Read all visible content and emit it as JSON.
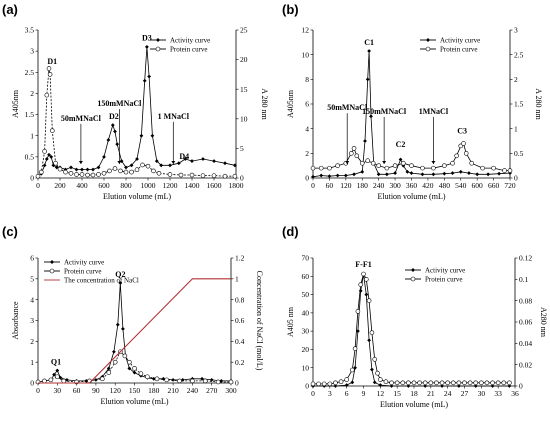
{
  "chart_data": [
    {
      "panel": "(a)",
      "type": "line",
      "xlabel": "Elution volume (mL)",
      "ylabel": "A405nm",
      "y2label": "A 280 nm",
      "xlim": [
        0,
        1800
      ],
      "ylim": [
        0,
        3.5
      ],
      "y2lim": [
        0,
        25
      ],
      "xticks": [
        0,
        200,
        400,
        600,
        800,
        1000,
        1200,
        1400,
        1600,
        1800
      ],
      "yticks": [
        0,
        0.5,
        1,
        1.5,
        2,
        2.5,
        3,
        3.5
      ],
      "y2ticks": [
        0,
        5,
        10,
        15,
        20,
        25
      ],
      "legend": [
        "Activity curve",
        "Protein curve"
      ],
      "annotations": [
        {
          "text": "D1",
          "x": 130,
          "y": 2.7,
          "arrow": false
        },
        {
          "text": "50mMNaCl",
          "x": 390,
          "y": 1.35,
          "arrow": true
        },
        {
          "text": "150mMNaCl",
          "x": 740,
          "y": 1.7,
          "arrow": true
        },
        {
          "text": "D2",
          "x": 690,
          "y": 1.4,
          "arrow": false
        },
        {
          "text": "D3",
          "x": 990,
          "y": 3.25,
          "arrow": false
        },
        {
          "text": "1 MNaCl",
          "x": 1230,
          "y": 1.4,
          "arrow": true
        },
        {
          "text": "D4",
          "x": 1330,
          "y": 0.45,
          "arrow": false
        }
      ],
      "series": [
        {
          "name": "Activity curve",
          "axis": "left",
          "marker": "diamond",
          "x": [
            0,
            30,
            60,
            80,
            100,
            120,
            140,
            170,
            200,
            250,
            300,
            350,
            400,
            450,
            500,
            550,
            600,
            640,
            680,
            700,
            720,
            760,
            800,
            850,
            900,
            940,
            970,
            990,
            1010,
            1040,
            1080,
            1120,
            1200,
            1280,
            1340,
            1400,
            1500,
            1600,
            1700,
            1790
          ],
          "y": [
            0.05,
            0.1,
            0.3,
            0.45,
            0.55,
            0.5,
            0.3,
            0.25,
            0.25,
            0.2,
            0.25,
            0.2,
            0.2,
            0.2,
            0.2,
            0.25,
            0.5,
            0.9,
            1.25,
            1.1,
            0.8,
            0.4,
            0.25,
            0.3,
            0.45,
            1.0,
            2.3,
            3.1,
            2.4,
            1.0,
            0.4,
            0.3,
            0.3,
            0.35,
            0.45,
            0.4,
            0.45,
            0.4,
            0.35,
            0.3
          ]
        },
        {
          "name": "Protein curve",
          "axis": "right",
          "marker": "circle",
          "x": [
            0,
            30,
            60,
            80,
            100,
            110,
            130,
            160,
            200,
            250,
            300,
            350,
            400,
            450,
            500,
            550,
            600,
            650,
            700,
            750,
            800,
            850,
            900,
            950,
            1000,
            1050,
            1100,
            1200,
            1300,
            1400,
            1500,
            1600,
            1700,
            1790
          ],
          "y": [
            0.3,
            1.0,
            4.5,
            14.0,
            18.5,
            17.5,
            8.0,
            2.5,
            1.5,
            1.0,
            0.8,
            0.6,
            0.6,
            0.5,
            0.5,
            0.6,
            0.8,
            1.2,
            1.6,
            1.2,
            1.0,
            1.0,
            1.4,
            2.2,
            2.0,
            1.2,
            0.8,
            0.6,
            0.5,
            0.5,
            0.4,
            0.4,
            0.3,
            0.3
          ]
        }
      ]
    },
    {
      "panel": "(b)",
      "type": "line",
      "xlabel": "Elution volume (mL)",
      "ylabel": "A405nm",
      "y2label": "A 280 nm",
      "xlim": [
        0,
        720
      ],
      "ylim": [
        0,
        12
      ],
      "y2lim": [
        0,
        3
      ],
      "xticks": [
        0,
        60,
        120,
        180,
        240,
        300,
        360,
        420,
        480,
        540,
        600,
        660,
        720
      ],
      "yticks": [
        0,
        2,
        4,
        6,
        8,
        10,
        12
      ],
      "y2ticks": [
        0,
        0.5,
        1,
        1.5,
        2,
        2.5,
        3
      ],
      "legend": [
        "Activity curve",
        "Protein curve"
      ],
      "annotations": [
        {
          "text": "C1",
          "x": 205,
          "y": 10.8,
          "arrow": false
        },
        {
          "text": "50mMNaCl",
          "x": 125,
          "y": 5.5,
          "arrow": true
        },
        {
          "text": "150mMNaCl",
          "x": 260,
          "y": 5.2,
          "arrow": true
        },
        {
          "text": "C2",
          "x": 320,
          "y": 2.5,
          "arrow": false
        },
        {
          "text": "1MNaCl",
          "x": 440,
          "y": 5.2,
          "arrow": true
        },
        {
          "text": "C3",
          "x": 545,
          "y": 3.6,
          "arrow": false
        }
      ],
      "series": [
        {
          "name": "Activity curve",
          "axis": "left",
          "marker": "diamond",
          "x": [
            0,
            30,
            60,
            90,
            120,
            150,
            180,
            190,
            200,
            205,
            212,
            222,
            240,
            270,
            300,
            320,
            330,
            345,
            360,
            400,
            440,
            480,
            510,
            540,
            570,
            600,
            640,
            680,
            720
          ],
          "y": [
            0.1,
            0.2,
            0.15,
            0.2,
            0.2,
            0.3,
            0.5,
            3.0,
            8.0,
            10.3,
            5.0,
            1.2,
            0.3,
            0.3,
            0.4,
            1.5,
            1.0,
            0.5,
            0.4,
            0.3,
            0.3,
            0.35,
            0.4,
            0.5,
            0.4,
            0.3,
            0.3,
            0.35,
            0.4
          ]
        },
        {
          "name": "Protein curve",
          "axis": "right",
          "marker": "circle",
          "x": [
            0,
            30,
            60,
            90,
            120,
            140,
            150,
            160,
            180,
            200,
            220,
            240,
            270,
            300,
            330,
            360,
            400,
            440,
            480,
            510,
            525,
            540,
            550,
            560,
            580,
            620,
            660,
            700,
            720
          ],
          "y": [
            0.2,
            0.2,
            0.2,
            0.25,
            0.3,
            0.5,
            0.6,
            0.45,
            0.3,
            0.35,
            0.3,
            0.25,
            0.2,
            0.25,
            0.3,
            0.25,
            0.2,
            0.2,
            0.25,
            0.3,
            0.45,
            0.65,
            0.7,
            0.5,
            0.3,
            0.2,
            0.2,
            0.15,
            0.15
          ]
        }
      ]
    },
    {
      "panel": "(c)",
      "type": "line",
      "xlabel": "Elution volume (mL)",
      "ylabel": "Absorbance",
      "y2label": "Concentration of NaCl (mol/L)",
      "xlim": [
        0,
        300
      ],
      "ylim": [
        0,
        6
      ],
      "y2lim": [
        0,
        1.2
      ],
      "xticks": [
        0,
        30,
        60,
        90,
        120,
        150,
        180,
        210,
        240,
        270,
        300
      ],
      "yticks": [
        0,
        1,
        2,
        3,
        4,
        5,
        6
      ],
      "y2ticks": [
        0,
        0.2,
        0.4,
        0.6,
        0.8,
        1,
        1.2
      ],
      "legend": [
        "Activity curve",
        "Protein curve",
        "The concentration of NaCl"
      ],
      "annotations": [
        {
          "text": "Q1",
          "x": 28,
          "y": 0.9
        },
        {
          "text": "Q2",
          "x": 128,
          "y": 5.1
        }
      ],
      "series": [
        {
          "name": "Activity curve",
          "axis": "left",
          "marker": "diamond",
          "x": [
            0,
            10,
            20,
            25,
            30,
            35,
            45,
            60,
            75,
            90,
            100,
            110,
            118,
            124,
            128,
            132,
            136,
            142,
            150,
            160,
            170,
            180,
            195,
            210,
            225,
            240,
            255,
            270,
            285,
            300
          ],
          "y": [
            0.05,
            0.1,
            0.15,
            0.4,
            0.6,
            0.25,
            0.15,
            0.1,
            0.1,
            0.15,
            0.3,
            0.7,
            1.5,
            2.8,
            4.8,
            2.6,
            1.3,
            0.7,
            0.5,
            0.35,
            0.25,
            0.2,
            0.2,
            0.15,
            0.15,
            0.2,
            0.2,
            0.15,
            0.1,
            0.1
          ]
        },
        {
          "name": "Protein curve",
          "axis": "left",
          "marker": "circle",
          "x": [
            0,
            10,
            20,
            30,
            40,
            60,
            80,
            100,
            110,
            120,
            128,
            135,
            142,
            150,
            160,
            170,
            185,
            200,
            220,
            240,
            260,
            280,
            300
          ],
          "y": [
            0.05,
            0.1,
            0.15,
            0.3,
            0.1,
            0.05,
            0.1,
            0.2,
            0.5,
            1.0,
            1.5,
            1.3,
            1.0,
            0.7,
            0.45,
            0.3,
            0.2,
            0.15,
            0.1,
            0.1,
            0.1,
            0.05,
            0.05
          ]
        },
        {
          "name": "The concentration of NaCl",
          "axis": "right",
          "marker": "none",
          "color": "#b03030",
          "x": [
            0,
            80,
            240,
            300
          ],
          "y": [
            0,
            0,
            1,
            1
          ]
        }
      ]
    },
    {
      "panel": "(d)",
      "type": "line",
      "xlabel": "Elution volume (mL)",
      "ylabel": "A405 nm",
      "y2label": "A280 nm",
      "xlim": [
        0,
        36
      ],
      "ylim": [
        0,
        70
      ],
      "y2lim": [
        0,
        0.12
      ],
      "xticks": [
        0,
        3,
        6,
        9,
        12,
        15,
        18,
        21,
        24,
        27,
        30,
        33,
        36
      ],
      "yticks": [
        0,
        10,
        20,
        30,
        40,
        50,
        60,
        70
      ],
      "y2ticks": [
        0,
        0.02,
        0.04,
        0.06,
        0.08,
        0.1,
        0.12
      ],
      "legend": [
        "Activity curve",
        "Protein curve"
      ],
      "annotations": [
        {
          "text": "F-F1",
          "x": 9,
          "y": 65
        }
      ],
      "series": [
        {
          "name": "Activity curve",
          "axis": "left",
          "marker": "diamond",
          "x": [
            0,
            2,
            4,
            6,
            7,
            7.5,
            8,
            8.5,
            9,
            9.5,
            10,
            10.5,
            11,
            12,
            14,
            17,
            20,
            23,
            26,
            29,
            32,
            35
          ],
          "y": [
            0,
            0,
            0,
            0.5,
            2,
            10,
            30,
            52,
            61,
            50,
            25,
            9,
            2,
            0.5,
            0,
            0,
            0,
            0,
            0,
            0,
            0,
            0
          ]
        },
        {
          "name": "Protein curve",
          "axis": "right",
          "marker": "circle",
          "x": [
            0,
            1,
            2,
            3,
            4,
            5,
            6,
            7,
            7.5,
            8,
            8.5,
            9,
            9.5,
            10,
            10.5,
            11,
            11.5,
            12,
            13,
            14,
            15,
            16,
            17,
            18,
            19,
            20,
            21,
            22,
            23,
            24,
            25,
            26,
            27,
            28,
            29,
            30,
            31,
            32,
            33,
            34,
            35
          ],
          "y": [
            0.002,
            0.002,
            0.002,
            0.002,
            0.003,
            0.004,
            0.006,
            0.015,
            0.035,
            0.07,
            0.095,
            0.105,
            0.1,
            0.08,
            0.05,
            0.025,
            0.012,
            0.006,
            0.004,
            0.003,
            0.003,
            0.003,
            0.003,
            0.003,
            0.003,
            0.003,
            0.003,
            0.003,
            0.003,
            0.003,
            0.003,
            0.003,
            0.003,
            0.003,
            0.003,
            0.003,
            0.003,
            0.003,
            0.003,
            0.003,
            0.003
          ]
        }
      ]
    }
  ]
}
